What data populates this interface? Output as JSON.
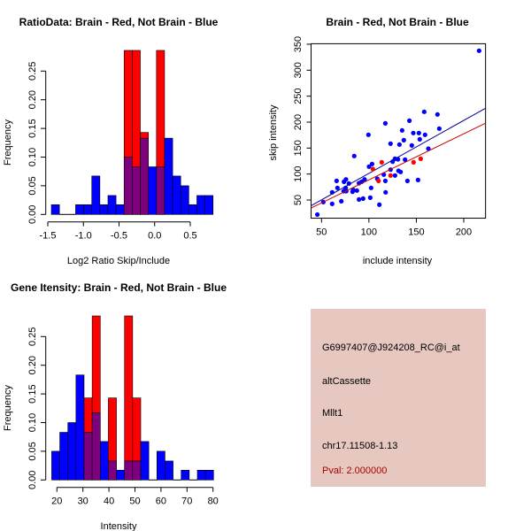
{
  "info_panel": {
    "probe_id": "G6997407@J924208_RC@i_at",
    "event_type": "altCassette",
    "gene": "Mllt1",
    "location": "chr17.11508-1.13",
    "pval": "Pval: 2.000000",
    "background_color": "#e6c8c1",
    "pval_color": "#aa0000"
  },
  "colors": {
    "red": "#ff0000",
    "blue": "#0000ff",
    "overlap": "#7f007f",
    "red_line": "#cc0000",
    "blue_line": "#000099"
  },
  "chart_data": [
    {
      "type": "bar",
      "title": "RatioData: Brain - Red, Not Brain - Blue",
      "xlabel": "Log2 Ratio Skip/Include",
      "ylabel": "Frequency",
      "bin_start": -1.45,
      "bin_width": 0.1135,
      "x_ticks": [
        -1.5,
        -1.0,
        -0.5,
        0.0,
        0.5
      ],
      "x_tick_labels": [
        "-1.5",
        "-1.0",
        "-0.5",
        "0.0",
        "0.5"
      ],
      "y_ticks": [
        0,
        0.05,
        0.1,
        0.15,
        0.2,
        0.25
      ],
      "y_tick_labels": [
        "0.00",
        "0.05",
        "0.10",
        "0.15",
        "0.20",
        "0.25"
      ],
      "series": [
        {
          "name": "Not Brain",
          "color": "blue",
          "values": [
            0.017,
            0,
            0,
            0.017,
            0.017,
            0.067,
            0.017,
            0.033,
            0.017,
            0.1,
            0.083,
            0.133,
            0.083,
            0.083,
            0.133,
            0.067,
            0.05,
            0.017,
            0.033,
            0.033
          ]
        },
        {
          "name": "Brain",
          "color": "red",
          "values": [
            0,
            0,
            0,
            0,
            0,
            0,
            0,
            0,
            0,
            0.286,
            0.286,
            0.143,
            0,
            0.286,
            0,
            0,
            0,
            0,
            0,
            0
          ]
        }
      ]
    },
    {
      "type": "scatter",
      "title": "Brain - Red, Not Brain - Blue",
      "xlabel": "include intensity",
      "ylabel": "skip intensity",
      "xlim": [
        39,
        223
      ],
      "ylim": [
        15,
        351
      ],
      "x_ticks": [
        50,
        100,
        150,
        200
      ],
      "y_ticks": [
        50,
        100,
        150,
        200,
        250,
        300,
        350
      ],
      "series": [
        {
          "name": "Not Brain",
          "color": "blue",
          "points": [
            [
              216.2,
              337.5
            ],
            [
              45.6,
              22
            ],
            [
              51.9,
              46
            ],
            [
              61.2,
              42.6
            ],
            [
              61.2,
              64.8
            ],
            [
              65.9,
              86.9
            ],
            [
              66.8,
              73.3
            ],
            [
              70.9,
              47.7
            ],
            [
              73.7,
              85.2
            ],
            [
              73.3,
              67
            ],
            [
              75.8,
              89.7
            ],
            [
              75.5,
              73.3
            ],
            [
              76.1,
              67
            ],
            [
              78.9,
              81.8
            ],
            [
              82.7,
              65.9
            ],
            [
              83.3,
              69.9
            ],
            [
              84.5,
              134.7
            ],
            [
              87.3,
              68.2
            ],
            [
              89.5,
              51.1
            ],
            [
              89.5,
              82.4
            ],
            [
              92.3,
              85.2
            ],
            [
              93.9,
              52.8
            ],
            [
              95.4,
              89.7
            ],
            [
              99.5,
              175.6
            ],
            [
              100.1,
              114.2
            ],
            [
              101.4,
              54.5
            ],
            [
              102.3,
              73.3
            ],
            [
              103.3,
              119.3
            ],
            [
              108.8,
              90.9
            ],
            [
              111,
              41
            ],
            [
              115.7,
              98.9
            ],
            [
              117.3,
              197.7
            ],
            [
              117.3,
              86.9
            ],
            [
              117.6,
              64.8
            ],
            [
              122.8,
              158.5
            ],
            [
              122.8,
              108.5
            ],
            [
              125,
              123.9
            ],
            [
              127.5,
              97.2
            ],
            [
              127.5,
              129.5
            ],
            [
              130.6,
              128.4
            ],
            [
              131.2,
              106.3
            ],
            [
              132.2,
              156.8
            ],
            [
              133.4,
              104
            ],
            [
              135,
              184.1
            ],
            [
              136.8,
              165.3
            ],
            [
              138.1,
              127.8
            ],
            [
              140.6,
              86.9
            ],
            [
              142.7,
              202.8
            ],
            [
              145.2,
              155.1
            ],
            [
              146.8,
              179
            ],
            [
              151.8,
              88.6
            ],
            [
              152.7,
              179
            ],
            [
              153.6,
              167
            ],
            [
              158.3,
              219.9
            ],
            [
              159.2,
              175.6
            ],
            [
              162.7,
              148.9
            ],
            [
              172.3,
              214.8
            ],
            [
              174.2,
              187.5
            ]
          ],
          "fit": {
            "slope": 1.02,
            "intercept": -0.7
          }
        },
        {
          "name": "Brain",
          "color": "red",
          "points": [
            [
              104.2,
              109.7
            ],
            [
              110.1,
              86.9
            ],
            [
              113.5,
              122.7
            ],
            [
              122.8,
              97.2
            ],
            [
              147.1,
              122.7
            ],
            [
              154.6,
              129.5
            ]
          ],
          "fit": {
            "slope": 0.888,
            "intercept": 0
          }
        }
      ]
    },
    {
      "type": "bar",
      "title": "Gene Itensity: Brain - Red, Not Brain - Blue",
      "xlabel": "Intensity",
      "ylabel": "Frequency",
      "bin_start": 18.0,
      "bin_width": 3.11,
      "x_ticks": [
        20,
        30,
        40,
        50,
        60,
        70,
        80
      ],
      "x_tick_labels": [
        "20",
        "30",
        "40",
        "50",
        "60",
        "70",
        "80"
      ],
      "y_ticks": [
        0,
        0.05,
        0.1,
        0.15,
        0.2,
        0.25
      ],
      "y_tick_labels": [
        "0.00",
        "0.05",
        "0.10",
        "0.15",
        "0.20",
        "0.25"
      ],
      "series": [
        {
          "name": "Not Brain",
          "color": "blue",
          "values": [
            0.05,
            0.083,
            0.1,
            0.183,
            0.083,
            0.117,
            0.067,
            0.033,
            0.017,
            0.033,
            0.033,
            0.067,
            0,
            0.05,
            0.033,
            0,
            0.017,
            0,
            0.017,
            0.017
          ]
        },
        {
          "name": "Brain",
          "color": "red",
          "values": [
            0,
            0,
            0,
            0,
            0.143,
            0.286,
            0,
            0.143,
            0,
            0.286,
            0.143,
            0,
            0,
            0,
            0,
            0,
            0,
            0,
            0,
            0
          ]
        }
      ]
    }
  ]
}
